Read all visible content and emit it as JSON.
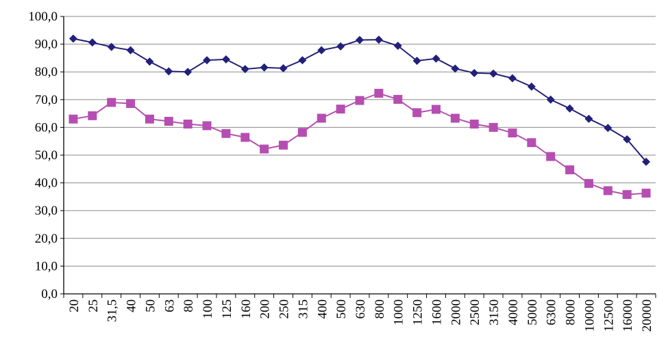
{
  "chart_data": {
    "type": "line",
    "title": "",
    "xlabel": "",
    "ylabel": "",
    "categories": [
      "20",
      "25",
      "31,5",
      "40",
      "50",
      "63",
      "80",
      "100",
      "125",
      "160",
      "200",
      "250",
      "315",
      "400",
      "500",
      "630",
      "800",
      "1000",
      "1250",
      "1600",
      "2000",
      "2500",
      "3150",
      "4000",
      "5000",
      "6300",
      "8000",
      "10000",
      "12500",
      "16000",
      "20000"
    ],
    "y_tick_labels": [
      "0,0",
      "10,0",
      "20,0",
      "30,0",
      "40,0",
      "50,0",
      "60,0",
      "70,0",
      "80,0",
      "90,0",
      "100,0"
    ],
    "ylim": [
      0,
      100
    ],
    "y_major_step": 10,
    "grid": "horizontal",
    "legend": "none",
    "series": [
      {
        "marker": "diamond",
        "color": "#22207a",
        "values": [
          92.0,
          90.6,
          89.0,
          87.8,
          83.7,
          80.2,
          80.0,
          84.2,
          84.5,
          81.0,
          81.6,
          81.3,
          84.2,
          87.8,
          89.2,
          91.5,
          91.6,
          89.4,
          84.0,
          84.8,
          81.2,
          79.6,
          79.4,
          77.7,
          74.7,
          70.0,
          66.8,
          63.1,
          59.8,
          55.7,
          47.6
        ]
      },
      {
        "marker": "square",
        "color": "#b64eb1",
        "values": [
          63.0,
          64.2,
          69.0,
          68.6,
          63.0,
          62.2,
          61.2,
          60.6,
          57.8,
          56.4,
          52.2,
          53.6,
          58.2,
          63.3,
          66.6,
          69.7,
          72.3,
          70.1,
          65.3,
          66.5,
          63.3,
          61.2,
          60.0,
          58.0,
          54.5,
          49.5,
          44.7,
          39.8,
          37.2,
          35.8,
          36.3
        ]
      }
    ]
  }
}
